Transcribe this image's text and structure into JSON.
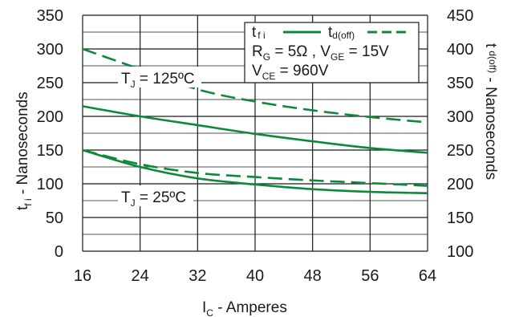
{
  "chart_data": {
    "type": "line",
    "x_axis": {
      "label_main": "I",
      "label_sub": "C",
      "label_rest": " - Amperes",
      "range": [
        16,
        64
      ],
      "ticks": [
        16,
        24,
        32,
        40,
        48,
        56,
        64
      ]
    },
    "y_axis_left": {
      "label_main": "t",
      "label_sub": "f i",
      "label_rest": " - Nanoseconds",
      "range": [
        0,
        350
      ],
      "ticks": [
        0,
        50,
        100,
        150,
        200,
        250,
        300,
        350
      ]
    },
    "y_axis_right": {
      "label_main": "t",
      "label_sub": "d(off)",
      "label_rest": " - Nanoseconds",
      "range": [
        100,
        450
      ],
      "ticks": [
        100,
        150,
        200,
        250,
        300,
        350,
        400,
        450
      ]
    },
    "grid": true,
    "legend": {
      "position": "top-right",
      "entries": [
        {
          "label_main": "t",
          "label_sub": "f i",
          "style": "solid"
        },
        {
          "label_main": "t",
          "label_sub": "d(off)",
          "style": "dashed"
        }
      ],
      "conditions": [
        {
          "main": "R",
          "sub": "G",
          "rest": " = 5Ω ,   "
        },
        {
          "main": "V",
          "sub": "GE",
          "rest": " = 15V"
        },
        {
          "main": "V",
          "sub": "CE",
          "rest": " = 960V"
        }
      ]
    },
    "annotations": [
      {
        "prefix": "T",
        "sub": "J",
        "value": " = 125",
        "unit": "ºC"
      },
      {
        "prefix": "T",
        "sub": "J",
        "value": " = 25",
        "unit": "ºC"
      }
    ],
    "series": [
      {
        "axis": "left",
        "style": "solid",
        "temp": "125",
        "x": [
          16,
          24,
          32,
          40,
          48,
          56,
          64
        ],
        "y": [
          215,
          200,
          187,
          174,
          163,
          153,
          146
        ]
      },
      {
        "axis": "left",
        "style": "solid",
        "temp": "25",
        "x": [
          16,
          24,
          32,
          40,
          48,
          56,
          64
        ],
        "y": [
          150,
          125,
          108,
          99,
          92,
          88,
          86
        ]
      },
      {
        "axis": "right",
        "style": "dashed",
        "temp": "125",
        "x": [
          16,
          24,
          32,
          40,
          48,
          56,
          64
        ],
        "y": [
          400,
          370,
          340,
          322,
          309,
          299,
          291
        ]
      },
      {
        "axis": "right",
        "style": "dashed",
        "temp": "25",
        "x": [
          16,
          24,
          32,
          40,
          48,
          56,
          64
        ],
        "y": [
          250,
          229,
          216,
          210,
          205,
          201,
          197
        ]
      }
    ],
    "colors": {
      "curve": "#0b8a3a",
      "grid": "#1a1a1a",
      "text": "#1a1a1a"
    }
  }
}
